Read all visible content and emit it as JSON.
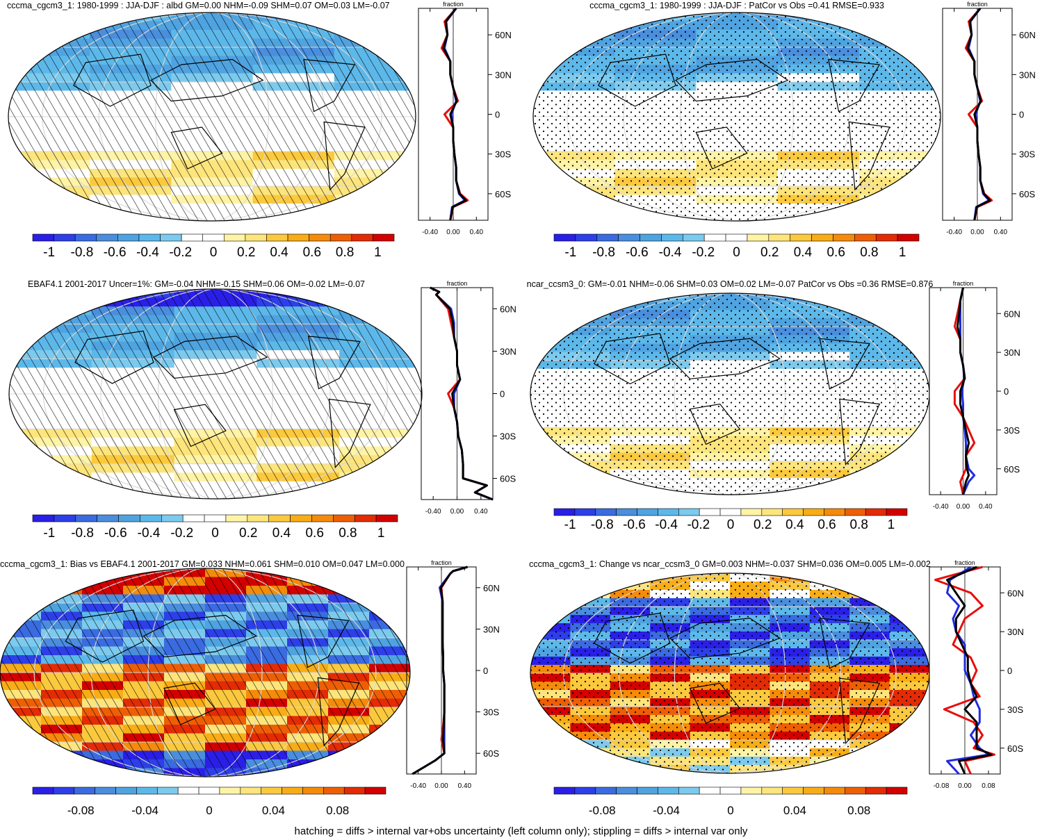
{
  "caption": "hatching = diffs > internal var+obs uncertainty (left column only); stippling = diffs > internal var only",
  "palette": [
    "#2a1fe6",
    "#2d3fe8",
    "#3a6be0",
    "#4a8edd",
    "#4fa3e0",
    "#5db8ea",
    "#7ccaee",
    "#ffffff",
    "#ffffff",
    "#fff3a6",
    "#fde57c",
    "#fbc93e",
    "#f8ad16",
    "#f48b0a",
    "#ee5f05",
    "#e32b05",
    "#d30000"
  ],
  "line_colors": {
    "obs": "#e80d0d",
    "model": "#1f2be0",
    "mean": "#000000"
  },
  "zonal_axis_label": "fraction",
  "panels": [
    {
      "title": "cccma_cgcm3_1: 1980-1999 : JJA-DJF : albd GM=0.00 NHM=-0.09 SHM=0.07 OM=0.03 LM=-0.07",
      "colorbar": {
        "ticks": [
          "-1",
          "-0.8",
          "-0.6",
          "-0.4",
          "-0.2",
          "0",
          "0.2",
          "0.4",
          "0.6",
          "0.8",
          "1"
        ]
      },
      "zonal": {
        "x_ticks": [
          "-0.40",
          "0.00",
          "0.40"
        ],
        "lat_ticks": [
          "60N",
          "30N",
          "0",
          "30S",
          "60S"
        ]
      }
    },
    {
      "title": "cccma_cgcm3_1: 1980-1999 : JJA-DJF : PatCor vs Obs =0.41 RMSE=0.933",
      "colorbar": {
        "ticks": [
          "-1",
          "-0.8",
          "-0.6",
          "-0.4",
          "-0.2",
          "0",
          "0.2",
          "0.4",
          "0.6",
          "0.8",
          "1"
        ]
      },
      "zonal": {
        "x_ticks": [
          "-0.40",
          "0.00",
          "0.40"
        ],
        "lat_ticks": [
          "60N",
          "30N",
          "0",
          "30S",
          "60S"
        ]
      }
    },
    {
      "title": "EBAF4.1 2001-2017 Uncer=1%: GM=-0.04 NHM=-0.15 SHM=0.06 OM=-0.02 LM=-0.07",
      "colorbar": {
        "ticks": [
          "-1",
          "-0.8",
          "-0.6",
          "-0.4",
          "-0.2",
          "0",
          "0.2",
          "0.4",
          "0.6",
          "0.8",
          "1"
        ]
      },
      "zonal": {
        "x_ticks": [
          "-0.40",
          "0.00",
          "0.40"
        ],
        "lat_ticks": [
          "60N",
          "30N",
          "0",
          "30S",
          "60S"
        ]
      }
    },
    {
      "title": "ncar_ccsm3_0: GM=-0.01 NHM=-0.06 SHM=0.03 OM=0.02 LM=-0.07 PatCor vs Obs =0.36 RMSE=0.876",
      "colorbar": {
        "ticks": [
          "-1",
          "-0.8",
          "-0.6",
          "-0.4",
          "-0.2",
          "0",
          "0.2",
          "0.4",
          "0.6",
          "0.8",
          "1"
        ]
      },
      "zonal": {
        "x_ticks": [
          "-0.40",
          "0.00",
          "0.40"
        ],
        "lat_ticks": [
          "60N",
          "30N",
          "0",
          "30S",
          "60S"
        ]
      }
    },
    {
      "title": "cccma_cgcm3_1: Bias vs EBAF4.1 2001-2017 GM=0.033 NHM=0.061 SHM=0.010 OM=0.047 LM=0.000",
      "colorbar": {
        "ticks": [
          "-0.08",
          "-0.04",
          "0",
          "0.04",
          "0.08"
        ]
      },
      "zonal": {
        "x_ticks": [
          "-0.40",
          "0.00",
          "0.40"
        ],
        "lat_ticks": [
          "60N",
          "30N",
          "0",
          "30S",
          "60S"
        ]
      }
    },
    {
      "title": "cccma_cgcm3_1: Change vs ncar_ccsm3_0 GM=0.003 NHM=-0.037 SHM=0.036 OM=0.005 LM=-0.002",
      "colorbar": {
        "ticks": [
          "-0.08",
          "-0.04",
          "0",
          "0.04",
          "0.08"
        ]
      },
      "zonal": {
        "x_ticks": [
          "-0.08",
          "0.00",
          "0.08"
        ],
        "lat_ticks": [
          "60N",
          "30N",
          "0",
          "30S",
          "60S"
        ]
      }
    }
  ],
  "chart_data": [
    {
      "type": "heatmap",
      "title": "cccma_cgcm3_1: 1980-1999 : JJA-DJF : albd GM=0.00 NHM=-0.09 SHM=0.07 OM=0.03 LM=-0.07",
      "colorbar_range": [
        -1.1,
        1.1
      ],
      "overlay": "hatching",
      "zonal_mean": {
        "xlabel": "fraction",
        "xlim": [
          -0.6,
          0.6
        ],
        "lat": [
          80,
          70,
          60,
          50,
          40,
          30,
          20,
          10,
          0,
          -10,
          -20,
          -30,
          -40,
          -50,
          -60,
          -65,
          -70,
          -80
        ],
        "obs": [
          0.05,
          -0.15,
          -0.1,
          -0.2,
          -0.05,
          -0.05,
          0.0,
          0.08,
          -0.15,
          0.0,
          0.0,
          0.02,
          0.05,
          0.05,
          0.12,
          0.25,
          0.0,
          -0.05
        ],
        "model": [
          0.05,
          -0.12,
          -0.1,
          -0.15,
          -0.05,
          -0.05,
          0.0,
          0.05,
          -0.03,
          0.0,
          0.0,
          0.02,
          0.05,
          0.05,
          0.1,
          0.2,
          -0.02,
          -0.05
        ],
        "mean": [
          0.05,
          -0.13,
          -0.1,
          -0.17,
          -0.05,
          -0.05,
          0.0,
          0.06,
          -0.05,
          0.0,
          0.0,
          0.02,
          0.05,
          0.05,
          0.11,
          0.22,
          -0.01,
          -0.05
        ]
      }
    },
    {
      "type": "heatmap",
      "title": "cccma_cgcm3_1: 1980-1999 : JJA-DJF : PatCor vs Obs =0.41 RMSE=0.933",
      "colorbar_range": [
        -1.1,
        1.1
      ],
      "overlay": "stippling",
      "zonal_mean": {
        "xlabel": "fraction",
        "xlim": [
          -0.6,
          0.6
        ],
        "lat": [
          80,
          70,
          60,
          50,
          40,
          30,
          20,
          10,
          0,
          -10,
          -20,
          -30,
          -40,
          -50,
          -60,
          -65,
          -70,
          -80
        ],
        "obs": [
          0.05,
          -0.15,
          -0.1,
          -0.2,
          -0.05,
          -0.05,
          0.0,
          0.08,
          -0.15,
          0.0,
          0.0,
          0.02,
          0.05,
          0.05,
          0.12,
          0.25,
          0.0,
          -0.05
        ],
        "model": [
          0.05,
          -0.12,
          -0.1,
          -0.15,
          -0.05,
          -0.05,
          0.0,
          0.05,
          -0.03,
          0.0,
          0.0,
          0.02,
          0.05,
          0.05,
          0.1,
          0.2,
          -0.02,
          -0.05
        ],
        "mean": [
          0.05,
          -0.13,
          -0.1,
          -0.17,
          -0.05,
          -0.05,
          0.0,
          0.06,
          -0.05,
          0.0,
          0.0,
          0.02,
          0.05,
          0.05,
          0.11,
          0.22,
          -0.01,
          -0.05
        ]
      }
    },
    {
      "type": "heatmap",
      "title": "EBAF4.1 2001-2017 Uncer=1%: GM=-0.04 NHM=-0.15 SHM=0.06 OM=-0.02 LM=-0.07",
      "colorbar_range": [
        -1.1,
        1.1
      ],
      "overlay": "hatching",
      "zonal_mean": {
        "xlabel": "fraction",
        "xlim": [
          -0.6,
          0.6
        ],
        "lat": [
          75,
          72,
          70,
          60,
          50,
          40,
          30,
          20,
          10,
          0,
          -10,
          -20,
          -30,
          -40,
          -50,
          -60,
          -65,
          -70,
          -75
        ],
        "obs": [
          -0.45,
          -0.3,
          -0.35,
          -0.15,
          -0.1,
          -0.05,
          0.0,
          0.0,
          0.05,
          -0.15,
          -0.05,
          0.0,
          0.02,
          0.08,
          0.1,
          0.1,
          0.5,
          0.3,
          0.6
        ],
        "model": [
          -0.45,
          -0.3,
          -0.35,
          -0.1,
          -0.05,
          -0.05,
          0.0,
          0.0,
          0.05,
          -0.05,
          -0.05,
          0.0,
          0.02,
          0.08,
          0.1,
          0.1,
          0.5,
          0.3,
          0.6
        ],
        "mean": [
          -0.45,
          -0.3,
          -0.35,
          -0.12,
          -0.07,
          -0.05,
          0.0,
          0.0,
          0.05,
          -0.08,
          -0.05,
          0.0,
          0.02,
          0.08,
          0.1,
          0.1,
          0.5,
          0.3,
          0.6
        ]
      }
    },
    {
      "type": "heatmap",
      "title": "ncar_ccsm3_0: GM=-0.01 NHM=-0.06 SHM=0.03 OM=0.02 LM=-0.07 PatCor vs Obs =0.36 RMSE=0.876",
      "colorbar_range": [
        -1.1,
        1.1
      ],
      "overlay": "stippling",
      "zonal_mean": {
        "xlabel": "fraction",
        "xlim": [
          -0.6,
          0.6
        ],
        "lat": [
          80,
          70,
          60,
          50,
          40,
          30,
          20,
          10,
          0,
          -10,
          -20,
          -30,
          -40,
          -50,
          -60,
          -65,
          -70,
          -80
        ],
        "obs": [
          0.0,
          -0.05,
          -0.1,
          -0.15,
          -0.05,
          -0.05,
          0.0,
          0.03,
          -0.15,
          -0.15,
          0.0,
          0.1,
          0.2,
          0.05,
          0.05,
          0.0,
          -0.05,
          0.0
        ],
        "model": [
          0.0,
          -0.05,
          -0.05,
          -0.05,
          -0.05,
          -0.05,
          0.0,
          0.02,
          -0.02,
          0.0,
          0.0,
          0.03,
          0.05,
          0.05,
          0.1,
          0.2,
          0.1,
          0.0
        ],
        "mean": [
          0.0,
          -0.05,
          -0.07,
          -0.1,
          -0.05,
          -0.05,
          0.0,
          0.03,
          -0.05,
          -0.05,
          0.0,
          0.05,
          0.1,
          0.05,
          0.07,
          0.1,
          0.05,
          0.0
        ]
      }
    },
    {
      "type": "heatmap",
      "title": "cccma_cgcm3_1: Bias vs EBAF4.1 2001-2017 GM=0.033 NHM=0.061 SHM=0.010 OM=0.047 LM=0.000",
      "colorbar_range": [
        -0.11,
        0.11
      ],
      "overlay": "hatching",
      "zonal_mean": {
        "xlabel": "fraction",
        "xlim": [
          -0.6,
          0.6
        ],
        "lat": [
          75,
          72,
          70,
          60,
          50,
          40,
          30,
          20,
          10,
          0,
          -10,
          -20,
          -30,
          -40,
          -50,
          -60,
          -65,
          -70,
          -75
        ],
        "obs": [
          0.45,
          0.2,
          0.15,
          0.0,
          0.02,
          0.02,
          0.02,
          0.02,
          0.03,
          0.03,
          0.05,
          0.05,
          0.05,
          0.03,
          0.0,
          0.05,
          -0.1,
          -0.3,
          -0.5
        ],
        "model": [
          0.45,
          0.2,
          0.15,
          -0.03,
          0.02,
          0.02,
          0.02,
          0.02,
          0.03,
          0.03,
          0.05,
          0.05,
          0.05,
          0.05,
          0.05,
          0.05,
          -0.1,
          -0.3,
          -0.5
        ],
        "mean": [
          0.45,
          0.2,
          0.15,
          -0.01,
          0.02,
          0.02,
          0.02,
          0.02,
          0.03,
          0.03,
          0.05,
          0.05,
          0.05,
          0.04,
          0.03,
          0.05,
          -0.1,
          -0.3,
          -0.5
        ]
      }
    },
    {
      "type": "heatmap",
      "title": "cccma_cgcm3_1: Change vs ncar_ccsm3_0 GM=0.003 NHM=-0.037 SHM=0.036 OM=0.005 LM=-0.002",
      "colorbar_range": [
        -0.11,
        0.11
      ],
      "overlay": "stippling",
      "zonal_mean": {
        "xlabel": "fraction",
        "xlim": [
          -0.12,
          0.12
        ],
        "lat": [
          80,
          70,
          60,
          50,
          40,
          30,
          20,
          10,
          0,
          -10,
          -20,
          -30,
          -40,
          -50,
          -60,
          -65,
          -70,
          -80
        ],
        "obs": [
          0.06,
          -0.1,
          0.02,
          0.06,
          0.0,
          -0.02,
          -0.04,
          0.02,
          0.04,
          0.02,
          0.05,
          -0.07,
          0.03,
          0.06,
          0.03,
          0.1,
          0.0,
          0.02
        ],
        "model": [
          0.02,
          -0.05,
          -0.06,
          -0.02,
          -0.04,
          -0.03,
          0.0,
          0.0,
          0.0,
          0.02,
          0.03,
          0.05,
          0.05,
          0.02,
          0.05,
          0.08,
          -0.06,
          -0.02
        ],
        "mean": [
          0.04,
          -0.06,
          -0.03,
          0.0,
          -0.03,
          -0.03,
          -0.01,
          0.01,
          0.01,
          0.02,
          0.04,
          0.0,
          0.04,
          0.04,
          0.04,
          0.09,
          -0.02,
          0.0
        ]
      }
    }
  ]
}
